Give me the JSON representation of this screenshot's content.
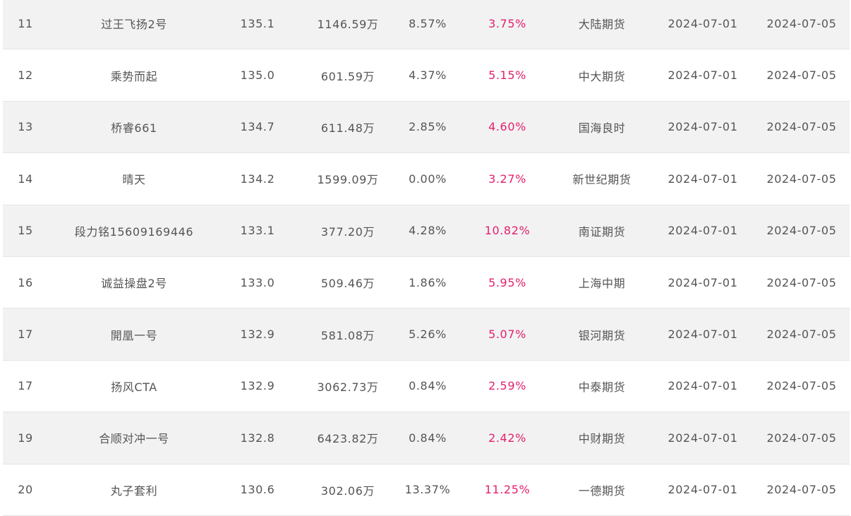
{
  "colors": {
    "row_shade": "#f2f2f2",
    "row_plain": "#ffffff",
    "return_text": "#e4206f",
    "text": "#555555"
  },
  "rows": [
    {
      "rank": "11",
      "name": "过王飞扬2号",
      "score": "135.1",
      "asset": "1146.59万",
      "drawdown": "8.57%",
      "ret": "3.75%",
      "broker": "大陆期货",
      "start": "2024-07-01",
      "end": "2024-07-05"
    },
    {
      "rank": "12",
      "name": "乘势而起",
      "score": "135.0",
      "asset": "601.59万",
      "drawdown": "4.37%",
      "ret": "5.15%",
      "broker": "中大期货",
      "start": "2024-07-01",
      "end": "2024-07-05"
    },
    {
      "rank": "13",
      "name": "桥睿661",
      "score": "134.7",
      "asset": "611.48万",
      "drawdown": "2.85%",
      "ret": "4.60%",
      "broker": "国海良时",
      "start": "2024-07-01",
      "end": "2024-07-05"
    },
    {
      "rank": "14",
      "name": "晴天",
      "score": "134.2",
      "asset": "1599.09万",
      "drawdown": "0.00%",
      "ret": "3.27%",
      "broker": "新世纪期货",
      "start": "2024-07-01",
      "end": "2024-07-05"
    },
    {
      "rank": "15",
      "name": "段力铭15609169446",
      "score": "133.1",
      "asset": "377.20万",
      "drawdown": "4.28%",
      "ret": "10.82%",
      "broker": "南证期货",
      "start": "2024-07-01",
      "end": "2024-07-05"
    },
    {
      "rank": "16",
      "name": "诚益操盘2号",
      "score": "133.0",
      "asset": "509.46万",
      "drawdown": "1.86%",
      "ret": "5.95%",
      "broker": "上海中期",
      "start": "2024-07-01",
      "end": "2024-07-05"
    },
    {
      "rank": "17",
      "name": "開凰一号",
      "score": "132.9",
      "asset": "581.08万",
      "drawdown": "5.26%",
      "ret": "5.07%",
      "broker": "银河期货",
      "start": "2024-07-01",
      "end": "2024-07-05"
    },
    {
      "rank": "17",
      "name": "扬风CTA",
      "score": "132.9",
      "asset": "3062.73万",
      "drawdown": "0.84%",
      "ret": "2.59%",
      "broker": "中泰期货",
      "start": "2024-07-01",
      "end": "2024-07-05"
    },
    {
      "rank": "19",
      "name": "合顺对冲一号",
      "score": "132.8",
      "asset": "6423.82万",
      "drawdown": "0.84%",
      "ret": "2.42%",
      "broker": "中财期货",
      "start": "2024-07-01",
      "end": "2024-07-05"
    },
    {
      "rank": "20",
      "name": "丸子套利",
      "score": "130.6",
      "asset": "302.06万",
      "drawdown": "13.37%",
      "ret": "11.25%",
      "broker": "一德期货",
      "start": "2024-07-01",
      "end": "2024-07-05"
    }
  ]
}
